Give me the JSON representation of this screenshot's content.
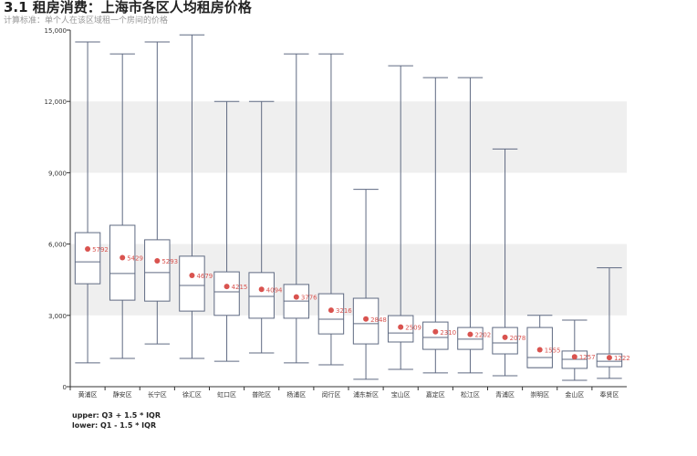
{
  "chart_data": {
    "type": "boxplot",
    "title": "3.1 租房消费：上海市各区人均租房价格",
    "subtitle": "计算标准：单个人在该区域租一个房间的价格",
    "categories": [
      "黄浦区",
      "静安区",
      "长宁区",
      "徐汇区",
      "虹口区",
      "普陀区",
      "杨浦区",
      "闵行区",
      "浦东新区",
      "宝山区",
      "嘉定区",
      "松江区",
      "青浦区",
      "崇明区",
      "金山区",
      "奉贤区"
    ],
    "boxes": [
      {
        "low": 1000,
        "q1": 4330,
        "median": 5250,
        "q3": 6480,
        "high": 14500
      },
      {
        "low": 1190,
        "q1": 3640,
        "median": 4760,
        "q3": 6790,
        "high": 14000
      },
      {
        "low": 1800,
        "q1": 3600,
        "median": 4800,
        "q3": 6180,
        "high": 14500
      },
      {
        "low": 1190,
        "q1": 3180,
        "median": 4260,
        "q3": 5490,
        "high": 14800
      },
      {
        "low": 1070,
        "q1": 3000,
        "median": 3990,
        "q3": 4830,
        "high": 12000
      },
      {
        "low": 1420,
        "q1": 2880,
        "median": 3800,
        "q3": 4800,
        "high": 12000
      },
      {
        "low": 1000,
        "q1": 2880,
        "median": 3600,
        "q3": 4300,
        "high": 14000
      },
      {
        "low": 920,
        "q1": 2220,
        "median": 2840,
        "q3": 3910,
        "high": 14000
      },
      {
        "low": 310,
        "q1": 1800,
        "median": 2650,
        "q3": 3720,
        "high": 8300
      },
      {
        "low": 730,
        "q1": 1880,
        "median": 2260,
        "q3": 2990,
        "high": 13500
      },
      {
        "low": 580,
        "q1": 1570,
        "median": 2070,
        "q3": 2720,
        "high": 13000
      },
      {
        "low": 580,
        "q1": 1570,
        "median": 2000,
        "q3": 2490,
        "high": 13000
      },
      {
        "low": 460,
        "q1": 1380,
        "median": 1840,
        "q3": 2490,
        "high": 10000
      },
      {
        "low": 800,
        "q1": 800,
        "median": 1230,
        "q3": 2490,
        "high": 3000
      },
      {
        "low": 270,
        "q1": 770,
        "median": 1150,
        "q3": 1500,
        "high": 2800
      },
      {
        "low": 350,
        "q1": 840,
        "median": 1070,
        "q3": 1380,
        "high": 5000
      }
    ],
    "means": [
      5792,
      5429,
      5293,
      4679,
      4215,
      4094,
      3776,
      3216,
      2848,
      2509,
      2310,
      2202,
      2078,
      1555,
      1257,
      1222
    ],
    "ylim": [
      0,
      15000
    ],
    "yticks": [
      0,
      3000,
      6000,
      9000,
      12000,
      15000
    ],
    "ytick_labels": [
      "0",
      "3,000",
      "6,000",
      "9,000",
      "12,000",
      "15,000"
    ],
    "grid": "alternating bands",
    "colors": {
      "box": "#5f6a82",
      "mean": "#d9534f",
      "band": "#efefef"
    },
    "note": [
      "upper: Q3 + 1.5 * IQR",
      "lower: Q1 - 1.5 * IQR"
    ]
  }
}
